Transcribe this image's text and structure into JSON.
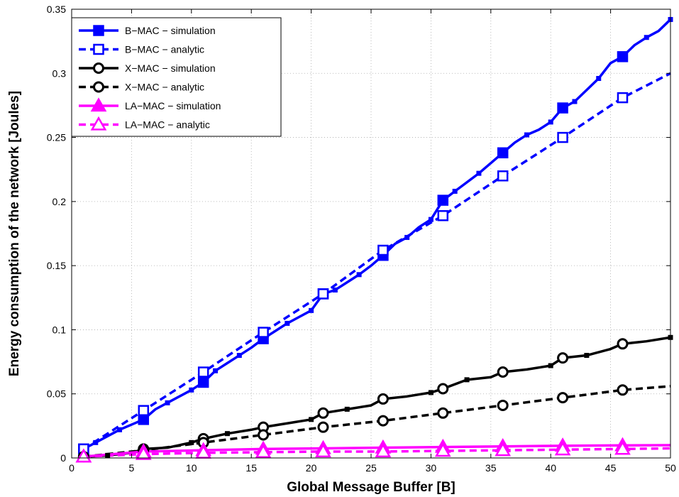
{
  "chart_data": {
    "type": "line",
    "title": "",
    "xlabel": "Global Message Buffer [B]",
    "ylabel": "Energy consumption of the network [Joules]",
    "xlim": [
      0,
      50
    ],
    "ylim": [
      0,
      0.35
    ],
    "xticks": [
      0,
      5,
      10,
      15,
      20,
      25,
      30,
      35,
      40,
      45,
      50
    ],
    "yticks": [
      0,
      0.05,
      0.1,
      0.15,
      0.2,
      0.25,
      0.3,
      0.35
    ],
    "grid": true,
    "legend_position": "top-left",
    "series": [
      {
        "name": "B−MAC − simulation",
        "color": "#0000ff",
        "dash": "solid",
        "marker": "square-filled",
        "marker_x": [
          1,
          6,
          11,
          16,
          21,
          26,
          31,
          36,
          41,
          46
        ],
        "x": [
          1,
          2,
          3,
          4,
          5,
          6,
          7,
          8,
          9,
          10,
          11,
          12,
          13,
          14,
          15,
          16,
          17,
          18,
          19,
          20,
          21,
          22,
          23,
          24,
          25,
          26,
          27,
          28,
          29,
          30,
          31,
          32,
          33,
          34,
          35,
          36,
          37,
          38,
          39,
          40,
          41,
          42,
          43,
          44,
          45,
          46,
          47,
          48,
          49,
          50
        ],
        "y": [
          0.007,
          0.012,
          0.017,
          0.022,
          0.026,
          0.03,
          0.038,
          0.043,
          0.048,
          0.053,
          0.059,
          0.068,
          0.074,
          0.08,
          0.086,
          0.093,
          0.099,
          0.105,
          0.11,
          0.115,
          0.128,
          0.131,
          0.137,
          0.143,
          0.15,
          0.158,
          0.167,
          0.172,
          0.18,
          0.186,
          0.201,
          0.208,
          0.215,
          0.222,
          0.23,
          0.238,
          0.246,
          0.252,
          0.256,
          0.262,
          0.273,
          0.278,
          0.287,
          0.296,
          0.308,
          0.313,
          0.322,
          0.328,
          0.333,
          0.342
        ]
      },
      {
        "name": "B−MAC − analytic",
        "color": "#0000ff",
        "dash": "dashed",
        "marker": "square-open",
        "marker_x": [
          1,
          6,
          11,
          16,
          21,
          26,
          31,
          36,
          41,
          46
        ],
        "x": [
          1,
          6,
          11,
          16,
          21,
          26,
          31,
          36,
          41,
          46,
          50
        ],
        "y": [
          0.007,
          0.037,
          0.067,
          0.098,
          0.128,
          0.162,
          0.189,
          0.22,
          0.25,
          0.281,
          0.3
        ]
      },
      {
        "name": "X−MAC − simulation",
        "color": "#000000",
        "dash": "solid",
        "marker": "circle-filled",
        "marker_x": [
          1,
          6,
          11,
          16,
          21,
          26,
          31,
          36,
          41,
          46
        ],
        "x": [
          1,
          3,
          5,
          6,
          8,
          10,
          11,
          13,
          15,
          16,
          18,
          20,
          21,
          23,
          25,
          26,
          28,
          30,
          31,
          33,
          35,
          36,
          38,
          40,
          41,
          43,
          45,
          46,
          48,
          50
        ],
        "y": [
          0.001,
          0.002,
          0.004,
          0.007,
          0.008,
          0.012,
          0.015,
          0.019,
          0.022,
          0.024,
          0.027,
          0.03,
          0.035,
          0.038,
          0.041,
          0.046,
          0.048,
          0.051,
          0.054,
          0.061,
          0.063,
          0.067,
          0.069,
          0.072,
          0.078,
          0.08,
          0.085,
          0.089,
          0.091,
          0.094
        ]
      },
      {
        "name": "X−MAC − analytic",
        "color": "#000000",
        "dash": "dashed",
        "marker": "circle-open",
        "marker_x": [
          1,
          6,
          11,
          16,
          21,
          26,
          31,
          36,
          41,
          46
        ],
        "x": [
          1,
          6,
          11,
          16,
          21,
          26,
          31,
          36,
          41,
          46,
          50
        ],
        "y": [
          0.001,
          0.006,
          0.012,
          0.018,
          0.024,
          0.029,
          0.035,
          0.041,
          0.047,
          0.053,
          0.056
        ]
      },
      {
        "name": "LA−MAC − simulation",
        "color": "#ff00ff",
        "dash": "solid",
        "marker": "triangle-filled",
        "marker_x": [
          1,
          6,
          11,
          16,
          21,
          26,
          31,
          36,
          41,
          46
        ],
        "x": [
          1,
          6,
          11,
          16,
          21,
          26,
          31,
          36,
          41,
          46,
          50
        ],
        "y": [
          0.001,
          0.005,
          0.006,
          0.007,
          0.0075,
          0.008,
          0.0085,
          0.009,
          0.0095,
          0.0098,
          0.01
        ]
      },
      {
        "name": "LA−MAC − analytic",
        "color": "#ff00ff",
        "dash": "dashed",
        "marker": "triangle-open",
        "marker_x": [
          1,
          6,
          11,
          16,
          21,
          26,
          31,
          36,
          41,
          46
        ],
        "x": [
          1,
          6,
          11,
          16,
          21,
          26,
          31,
          36,
          41,
          46,
          50
        ],
        "y": [
          0.001,
          0.003,
          0.004,
          0.0045,
          0.005,
          0.005,
          0.0055,
          0.006,
          0.0065,
          0.007,
          0.0075
        ]
      }
    ]
  }
}
